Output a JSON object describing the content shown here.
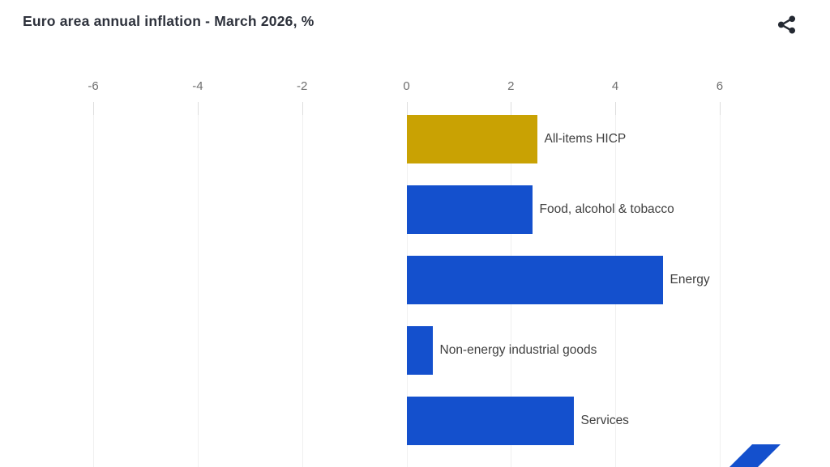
{
  "header": {
    "title": "Euro area annual inflation - March 2026, %",
    "share_icon_name": "share-icon"
  },
  "chart_data": {
    "type": "bar",
    "orientation": "horizontal",
    "title": "Euro area annual inflation - March 2026, %",
    "categories": [
      "All-items HICP",
      "Food, alcohol & tobacco",
      "Energy",
      "Non-energy industrial goods",
      "Services"
    ],
    "values": [
      2.5,
      2.4,
      4.9,
      0.5,
      3.2
    ],
    "unit": "%",
    "xticks": [
      -6,
      -4,
      -2,
      0,
      2,
      4,
      6
    ],
    "xlim": [
      -7.8,
      8.1
    ],
    "grid": true,
    "legend": false,
    "bar_colors": [
      "#c9a203",
      "#1450cd",
      "#1450cd",
      "#1450cd",
      "#1450cd"
    ],
    "highlight_color": "#c9a203",
    "series_color": "#1450cd"
  },
  "colors": {
    "gold": "#c9a203",
    "blue": "#1450cd",
    "title_text": "#2e323c",
    "tick_text": "#6e6e6e",
    "label_text": "#3f3f3f",
    "gridline": "#f0f0f0",
    "icon": "#242932"
  },
  "branding": {
    "logo_fragment": "eurostat-logo-corner-stripe"
  }
}
